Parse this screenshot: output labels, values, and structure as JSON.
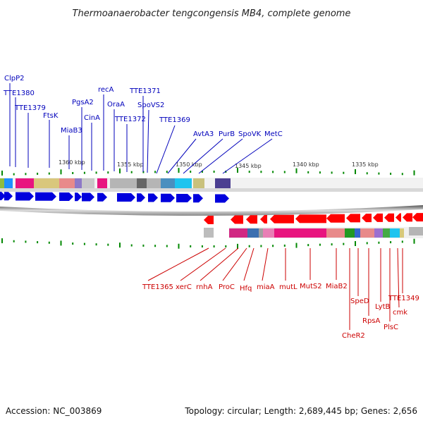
{
  "title": "Thermoanaerobacter tengcongensis MB4, complete genome",
  "footer": {
    "accession": "Accession: NC_003869",
    "summary": "Topology: circular; Length: 2,689,445 bp; Genes: 2,656"
  },
  "ticks": [
    "1360 kbp",
    "1355 kbp",
    "1350 kbp",
    "1345 kbp",
    "1340 kbp",
    "1335 kbp"
  ],
  "top_genes": [
    "ClpP2",
    "TTE1380",
    "TTE1379",
    "FtsK",
    "MiaB3",
    "PgsA2",
    "CinA",
    "recA",
    "OraA",
    "TTE1372",
    "TTE1371",
    "SpoVS2",
    "TTE1369",
    "AvtA3",
    "PurB",
    "SpoVK",
    "MetC"
  ],
  "bottom_genes": [
    "TTE1365",
    "xerC",
    "rnhA",
    "ProC",
    "Hfq",
    "miaA",
    "mutL",
    "MutS2",
    "MiaB2",
    "CheR2",
    "SpeD",
    "RpsA",
    "LytB",
    "PlsC",
    "cmk",
    "TTE1349"
  ],
  "colors": {
    "forward": "#0000dd",
    "reverse": "#ff0000",
    "top_label": "#0000bb",
    "bottom_label": "#cc0000",
    "tick": "#008800"
  }
}
